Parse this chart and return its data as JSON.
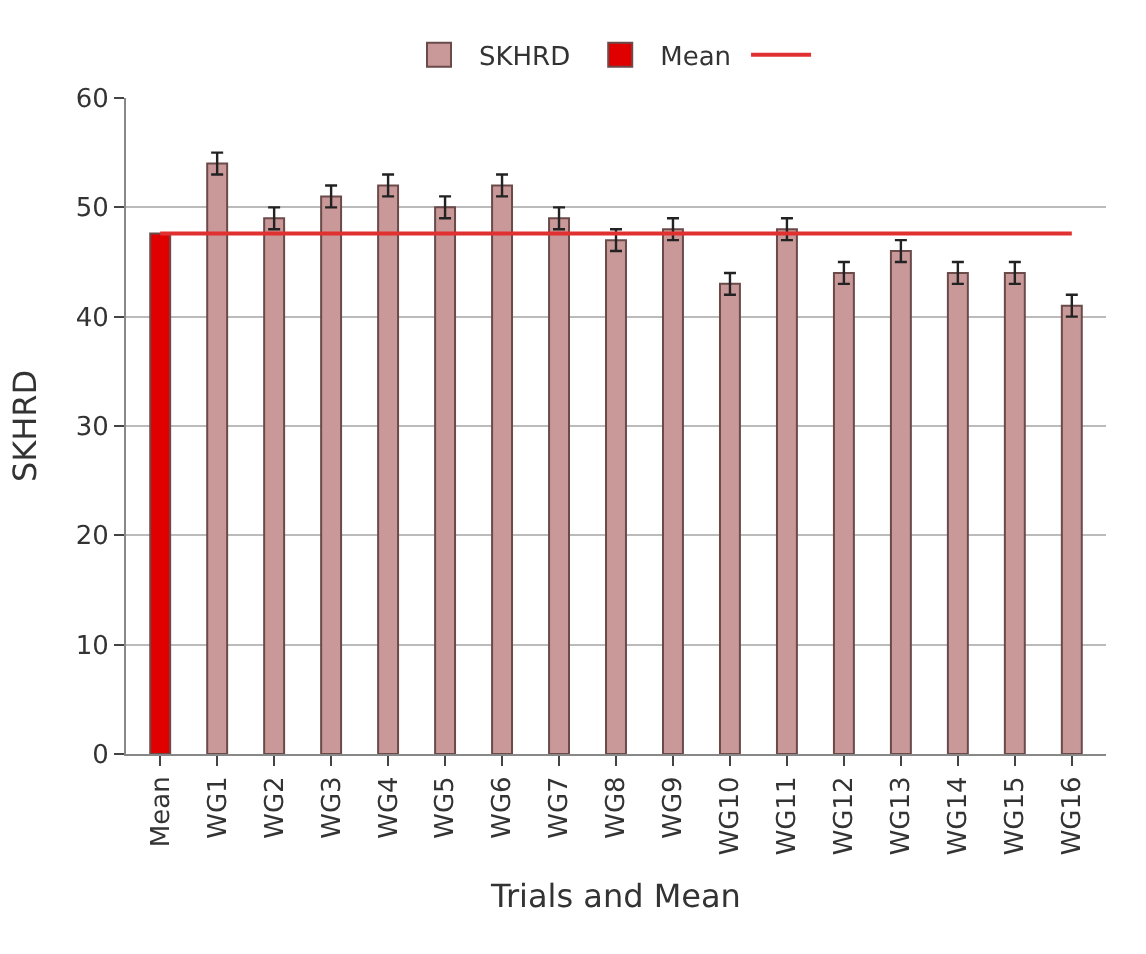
{
  "chart_data": {
    "type": "bar",
    "xlabel": "Trials and Mean",
    "ylabel": "SKHRD",
    "categories": [
      "Mean",
      "WG1",
      "WG2",
      "WG3",
      "WG4",
      "WG5",
      "WG6",
      "WG7",
      "WG8",
      "WG9",
      "WG10",
      "WG11",
      "WG12",
      "WG13",
      "WG14",
      "WG15",
      "WG16"
    ],
    "series": [
      {
        "name": "SKHRD",
        "color": "#c99898",
        "values": [
          null,
          54,
          49,
          51,
          52,
          50,
          52,
          49,
          47,
          48,
          43,
          48,
          44,
          46,
          44,
          44,
          41
        ],
        "errors": [
          null,
          1,
          1,
          1,
          1,
          1,
          1,
          1,
          1,
          1,
          1,
          1,
          1,
          1,
          1,
          1,
          1
        ]
      },
      {
        "name": "Mean",
        "color": "#e00000",
        "values": [
          47.6,
          null,
          null,
          null,
          null,
          null,
          null,
          null,
          null,
          null,
          null,
          null,
          null,
          null,
          null,
          null,
          null
        ]
      },
      {
        "type": "line",
        "color": "#e03030",
        "values": [
          47.6,
          47.6,
          47.6,
          47.6,
          47.6,
          47.6,
          47.6,
          47.6,
          47.6,
          47.6,
          47.6,
          47.6,
          47.6,
          47.6,
          47.6,
          47.6,
          47.6
        ]
      }
    ],
    "ylim": [
      0,
      60
    ],
    "yticks": [
      0,
      10,
      20,
      30,
      40,
      50,
      60
    ],
    "grid": "y",
    "legend": "top"
  }
}
